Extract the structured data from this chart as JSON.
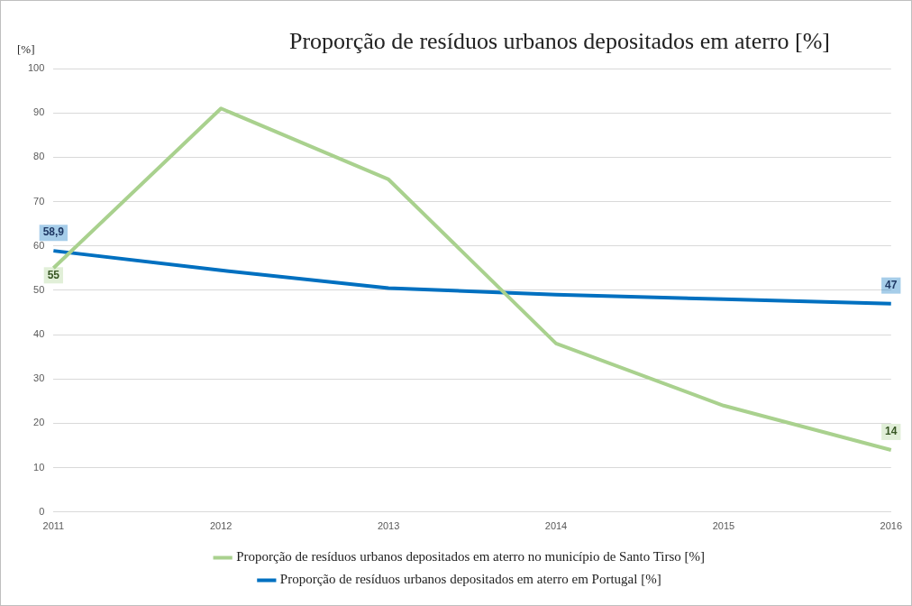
{
  "chart_data": {
    "type": "line",
    "title": "Proporção de resíduos urbanos depositados em aterro [%]",
    "ylabel": "[%]",
    "categories": [
      "2011",
      "2012",
      "2013",
      "2014",
      "2015",
      "2016"
    ],
    "series": [
      {
        "name": "Proporção de resíduos urbanos depositados em aterro no município de Santo Tirso [%]",
        "color": "#a9d18e",
        "values": [
          55,
          91,
          75,
          38,
          24,
          14
        ],
        "value_labels": [
          "55",
          null,
          null,
          null,
          null,
          "14"
        ]
      },
      {
        "name": "Proporção de resíduos urbanos depositados em aterro em Portugal [%]",
        "color": "#0070c0",
        "values": [
          58.9,
          54.5,
          50.5,
          49,
          48,
          47
        ],
        "value_labels": [
          "58,9",
          null,
          null,
          null,
          null,
          "47"
        ]
      }
    ],
    "ylim": [
      0,
      100
    ],
    "yticks": [
      0,
      10,
      20,
      30,
      40,
      50,
      60,
      70,
      80,
      90,
      100
    ],
    "grid": "y",
    "legend": "bottom",
    "marker": "none",
    "line_style": "solid"
  }
}
